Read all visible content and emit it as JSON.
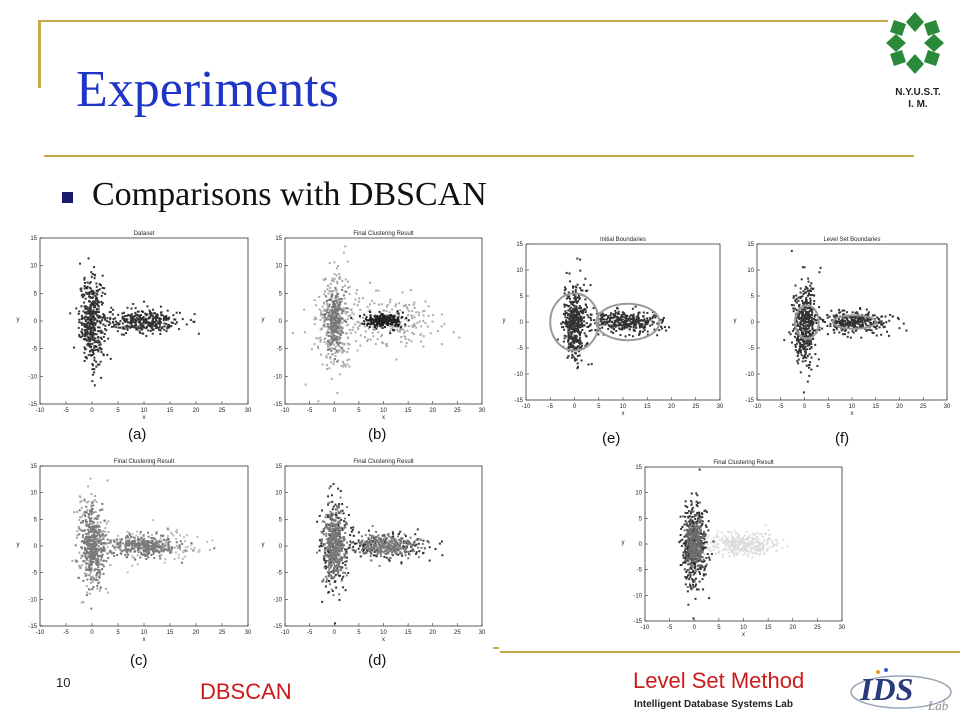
{
  "slide": {
    "title": "Experiments",
    "bullet": "Comparisons with DBSCAN",
    "page_number": "10",
    "org_line1": "N.Y.U.S.T.",
    "org_line2": "I. M.",
    "dbscan_caption": "DBSCAN",
    "level_set_caption": "Level Set Method",
    "lab_name": "Intelligent Database Systems Lab",
    "ids_logo_text": "IDS",
    "ids_logo_subtext": "Lab",
    "colors": {
      "title": "#1f35c8",
      "accent_line": "#c8a94a",
      "caption_red": "#cc1a1a"
    }
  },
  "chart_data": [
    {
      "id": "a",
      "type": "scatter",
      "title": "Dataset",
      "xlabel": "x",
      "ylabel": "y",
      "xlim": [
        -10,
        30
      ],
      "ylim": [
        -15,
        15
      ],
      "x_ticks": [
        "-10",
        "-5",
        "0",
        "5",
        "10",
        "15",
        "20",
        "25",
        "30"
      ],
      "y_ticks": [
        "15",
        "10",
        "5",
        "0",
        "-5",
        "-10",
        "-15"
      ],
      "panel_label": "(a)",
      "clusters": [
        {
          "cx": 0,
          "cy": 0,
          "sx": 1.2,
          "sy": 3.8,
          "n": 420,
          "color": "#333333"
        },
        {
          "cx": 10,
          "cy": 0,
          "sx": 3.6,
          "sy": 1.1,
          "n": 330,
          "color": "#333333"
        }
      ],
      "boundaries": []
    },
    {
      "id": "b",
      "type": "scatter",
      "title": "Final Clustering Result",
      "xlabel": "x",
      "ylabel": "y",
      "xlim": [
        -10,
        30
      ],
      "ylim": [
        -15,
        15
      ],
      "x_ticks": [
        "-10",
        "-5",
        "0",
        "5",
        "10",
        "15",
        "20",
        "25",
        "30"
      ],
      "y_ticks": [
        "15",
        "10",
        "5",
        "0",
        "-5",
        "-10",
        "-15"
      ],
      "panel_label": "(b)",
      "clusters": [
        {
          "cx": 0,
          "cy": 0,
          "sx": 1.8,
          "sy": 5.0,
          "n": 300,
          "color": "#aaaaaa"
        },
        {
          "cx": 10,
          "cy": 0,
          "sx": 6.0,
          "sy": 2.2,
          "n": 230,
          "color": "#aaaaaa"
        },
        {
          "cx": 0,
          "cy": 0,
          "sx": 0.9,
          "sy": 2.5,
          "n": 230,
          "color": "#777777"
        },
        {
          "cx": 10,
          "cy": 0,
          "sx": 2.0,
          "sy": 0.6,
          "n": 230,
          "color": "#222222"
        }
      ],
      "boundaries": []
    },
    {
      "id": "c",
      "type": "scatter",
      "title": "Final Clustering Result",
      "xlabel": "x",
      "ylabel": "y",
      "xlim": [
        -10,
        30
      ],
      "ylim": [
        -15,
        15
      ],
      "x_ticks": [
        "-10",
        "-5",
        "0",
        "5",
        "10",
        "15",
        "20",
        "25",
        "30"
      ],
      "y_ticks": [
        "15",
        "10",
        "5",
        "0",
        "-5",
        "-10",
        "-15"
      ],
      "panel_label": "(c)",
      "clusters": [
        {
          "cx": 0,
          "cy": 0,
          "sx": 1.6,
          "sy": 4.8,
          "n": 220,
          "color": "#aaaaaa"
        },
        {
          "cx": 12,
          "cy": 0,
          "sx": 5.0,
          "sy": 1.5,
          "n": 160,
          "color": "#bbbbbb"
        },
        {
          "cx": 0,
          "cy": 0,
          "sx": 1.1,
          "sy": 3.4,
          "n": 360,
          "color": "#7a7a7a"
        },
        {
          "cx": 10,
          "cy": 0,
          "sx": 3.3,
          "sy": 1.0,
          "n": 300,
          "color": "#7a7a7a"
        }
      ],
      "boundaries": []
    },
    {
      "id": "d",
      "type": "scatter",
      "title": "Final Clustering Result",
      "xlabel": "x",
      "ylabel": "y",
      "xlim": [
        -10,
        30
      ],
      "ylim": [
        -15,
        15
      ],
      "x_ticks": [
        "-10",
        "-5",
        "0",
        "5",
        "10",
        "15",
        "20",
        "25",
        "30"
      ],
      "y_ticks": [
        "15",
        "10",
        "5",
        "0",
        "-5",
        "-10",
        "-15"
      ],
      "panel_label": "(d)",
      "clusters": [
        {
          "cx": 0,
          "cy": 0,
          "sx": 1.5,
          "sy": 4.6,
          "n": 200,
          "color": "#333333"
        },
        {
          "cx": 11,
          "cy": 0,
          "sx": 4.5,
          "sy": 1.4,
          "n": 150,
          "color": "#333333"
        },
        {
          "cx": 0,
          "cy": 0,
          "sx": 1.1,
          "sy": 3.4,
          "n": 360,
          "color": "#7a7a7a"
        },
        {
          "cx": 10,
          "cy": 0,
          "sx": 3.3,
          "sy": 1.0,
          "n": 300,
          "color": "#7a7a7a"
        }
      ],
      "boundaries": []
    },
    {
      "id": "e",
      "type": "scatter",
      "title": "Initial Boundaries",
      "xlabel": "x",
      "ylabel": "y",
      "xlim": [
        -10,
        30
      ],
      "ylim": [
        -15,
        15
      ],
      "x_ticks": [
        "-10",
        "-5",
        "0",
        "5",
        "10",
        "15",
        "20",
        "25",
        "30"
      ],
      "y_ticks": [
        "15",
        "10",
        "5",
        "0",
        "-5",
        "-10",
        "-15"
      ],
      "panel_label": "(e)",
      "clusters": [
        {
          "cx": 0,
          "cy": 0,
          "sx": 1.2,
          "sy": 3.8,
          "n": 420,
          "color": "#333333"
        },
        {
          "cx": 10,
          "cy": 0,
          "sx": 3.6,
          "sy": 1.1,
          "n": 330,
          "color": "#333333"
        }
      ],
      "boundaries": [
        {
          "cx": 0,
          "cy": 0,
          "rx": 5,
          "ry": 5.5
        },
        {
          "cx": 11,
          "cy": 0,
          "rx": 6.5,
          "ry": 3.5
        }
      ]
    },
    {
      "id": "f",
      "type": "scatter",
      "title": "Level Set Boundaries",
      "xlabel": "x",
      "ylabel": "y",
      "xlim": [
        -10,
        30
      ],
      "ylim": [
        -15,
        15
      ],
      "x_ticks": [
        "-10",
        "-5",
        "0",
        "5",
        "10",
        "15",
        "20",
        "25",
        "30"
      ],
      "y_ticks": [
        "15",
        "10",
        "5",
        "0",
        "-5",
        "-10",
        "-15"
      ],
      "panel_label": "(f)",
      "clusters": [
        {
          "cx": 0,
          "cy": 0,
          "sx": 1.2,
          "sy": 3.8,
          "n": 420,
          "color": "#333333"
        },
        {
          "cx": 10,
          "cy": 0,
          "sx": 3.6,
          "sy": 1.1,
          "n": 330,
          "color": "#333333"
        }
      ],
      "boundaries": [
        {
          "cx": 0.5,
          "cy": 0,
          "rx": 2.5,
          "ry": 3.2
        },
        {
          "cx": 10.5,
          "cy": 0,
          "rx": 4.5,
          "ry": 1.3
        }
      ]
    },
    {
      "id": "g",
      "type": "scatter",
      "title": "Final Clustering Result",
      "xlabel": "x",
      "ylabel": "y",
      "xlim": [
        -10,
        30
      ],
      "ylim": [
        -15,
        15
      ],
      "x_ticks": [
        "-10",
        "-5",
        "0",
        "5",
        "10",
        "15",
        "20",
        "25",
        "30"
      ],
      "y_ticks": [
        "15",
        "10",
        "5",
        "0",
        "-5",
        "-10",
        "-15"
      ],
      "panel_label": "",
      "clusters": [
        {
          "cx": 0,
          "cy": 0,
          "sx": 1.2,
          "sy": 3.8,
          "n": 420,
          "color": "#333333"
        },
        {
          "cx": 0,
          "cy": 0,
          "sx": 0.9,
          "sy": 2.6,
          "n": 250,
          "color": "#6f6f6f"
        },
        {
          "cx": 10,
          "cy": 0,
          "sx": 3.6,
          "sy": 1.1,
          "n": 330,
          "color": "#dddddd"
        }
      ],
      "boundaries": []
    }
  ]
}
